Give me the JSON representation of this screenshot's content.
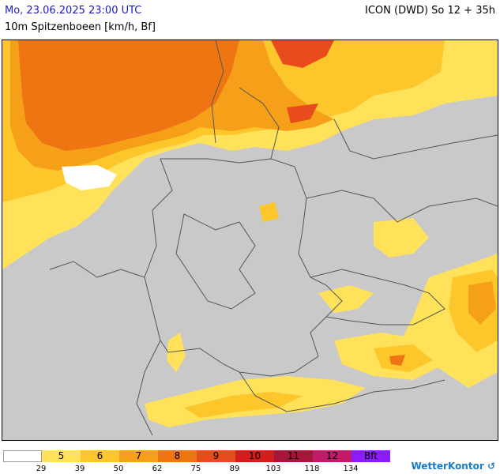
{
  "header": {
    "datetime": "Mo, 23.06.2025 23:00 UTC",
    "parameter": "10m Spitzenboeen [km/h, Bf]",
    "model": "ICON (DWD) So 12 + 35h"
  },
  "legend": {
    "segments": [
      {
        "label": "",
        "color": "#ffffff"
      },
      {
        "label": "5",
        "color": "#ffe25a"
      },
      {
        "label": "6",
        "color": "#fdc72c"
      },
      {
        "label": "7",
        "color": "#f6a01a"
      },
      {
        "label": "8",
        "color": "#ef7513"
      },
      {
        "label": "9",
        "color": "#e84c1c"
      },
      {
        "label": "10",
        "color": "#d61c1c"
      },
      {
        "label": "11",
        "color": "#a8153a"
      },
      {
        "label": "12",
        "color": "#c41a6a"
      },
      {
        "label": "Bft",
        "color": "#8a1cff"
      }
    ],
    "ticks": [
      "29",
      "39",
      "50",
      "62",
      "75",
      "89",
      "103",
      "118",
      "134"
    ]
  },
  "brand": {
    "name": "WetterKontor",
    "icon": "swirl-logo-icon"
  },
  "colors": {
    "land_bg": "#c9c9c9",
    "border_lines": "#555555"
  }
}
